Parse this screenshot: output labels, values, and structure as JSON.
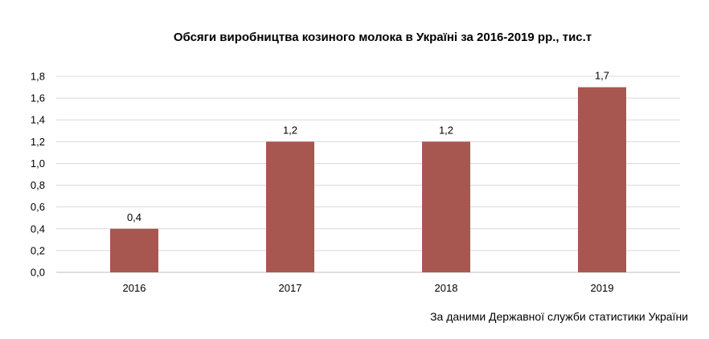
{
  "chart_data": {
    "type": "bar",
    "title": "Обсяги виробництва козиного молока в Україні за 2016-2019 рр., тис.т",
    "categories": [
      "2016",
      "2017",
      "2018",
      "2019"
    ],
    "values": [
      0.4,
      1.2,
      1.2,
      1.7
    ],
    "value_labels": [
      "0,4",
      "1,2",
      "1,2",
      "1,7"
    ],
    "ylim": [
      0,
      1.8
    ],
    "yticks": [
      0,
      0.2,
      0.4,
      0.6,
      0.8,
      1.0,
      1.2,
      1.4,
      1.6,
      1.8
    ],
    "ytick_labels": [
      "0,0",
      "0,2",
      "0,4",
      "0,6",
      "0,8",
      "1,0",
      "1,2",
      "1,4",
      "1,6",
      "1,8"
    ],
    "xlabel": "",
    "ylabel": "",
    "grid": true,
    "legend": "none",
    "bar_color": "#a85750"
  },
  "source_note": "За даними Державної служби статистики України"
}
